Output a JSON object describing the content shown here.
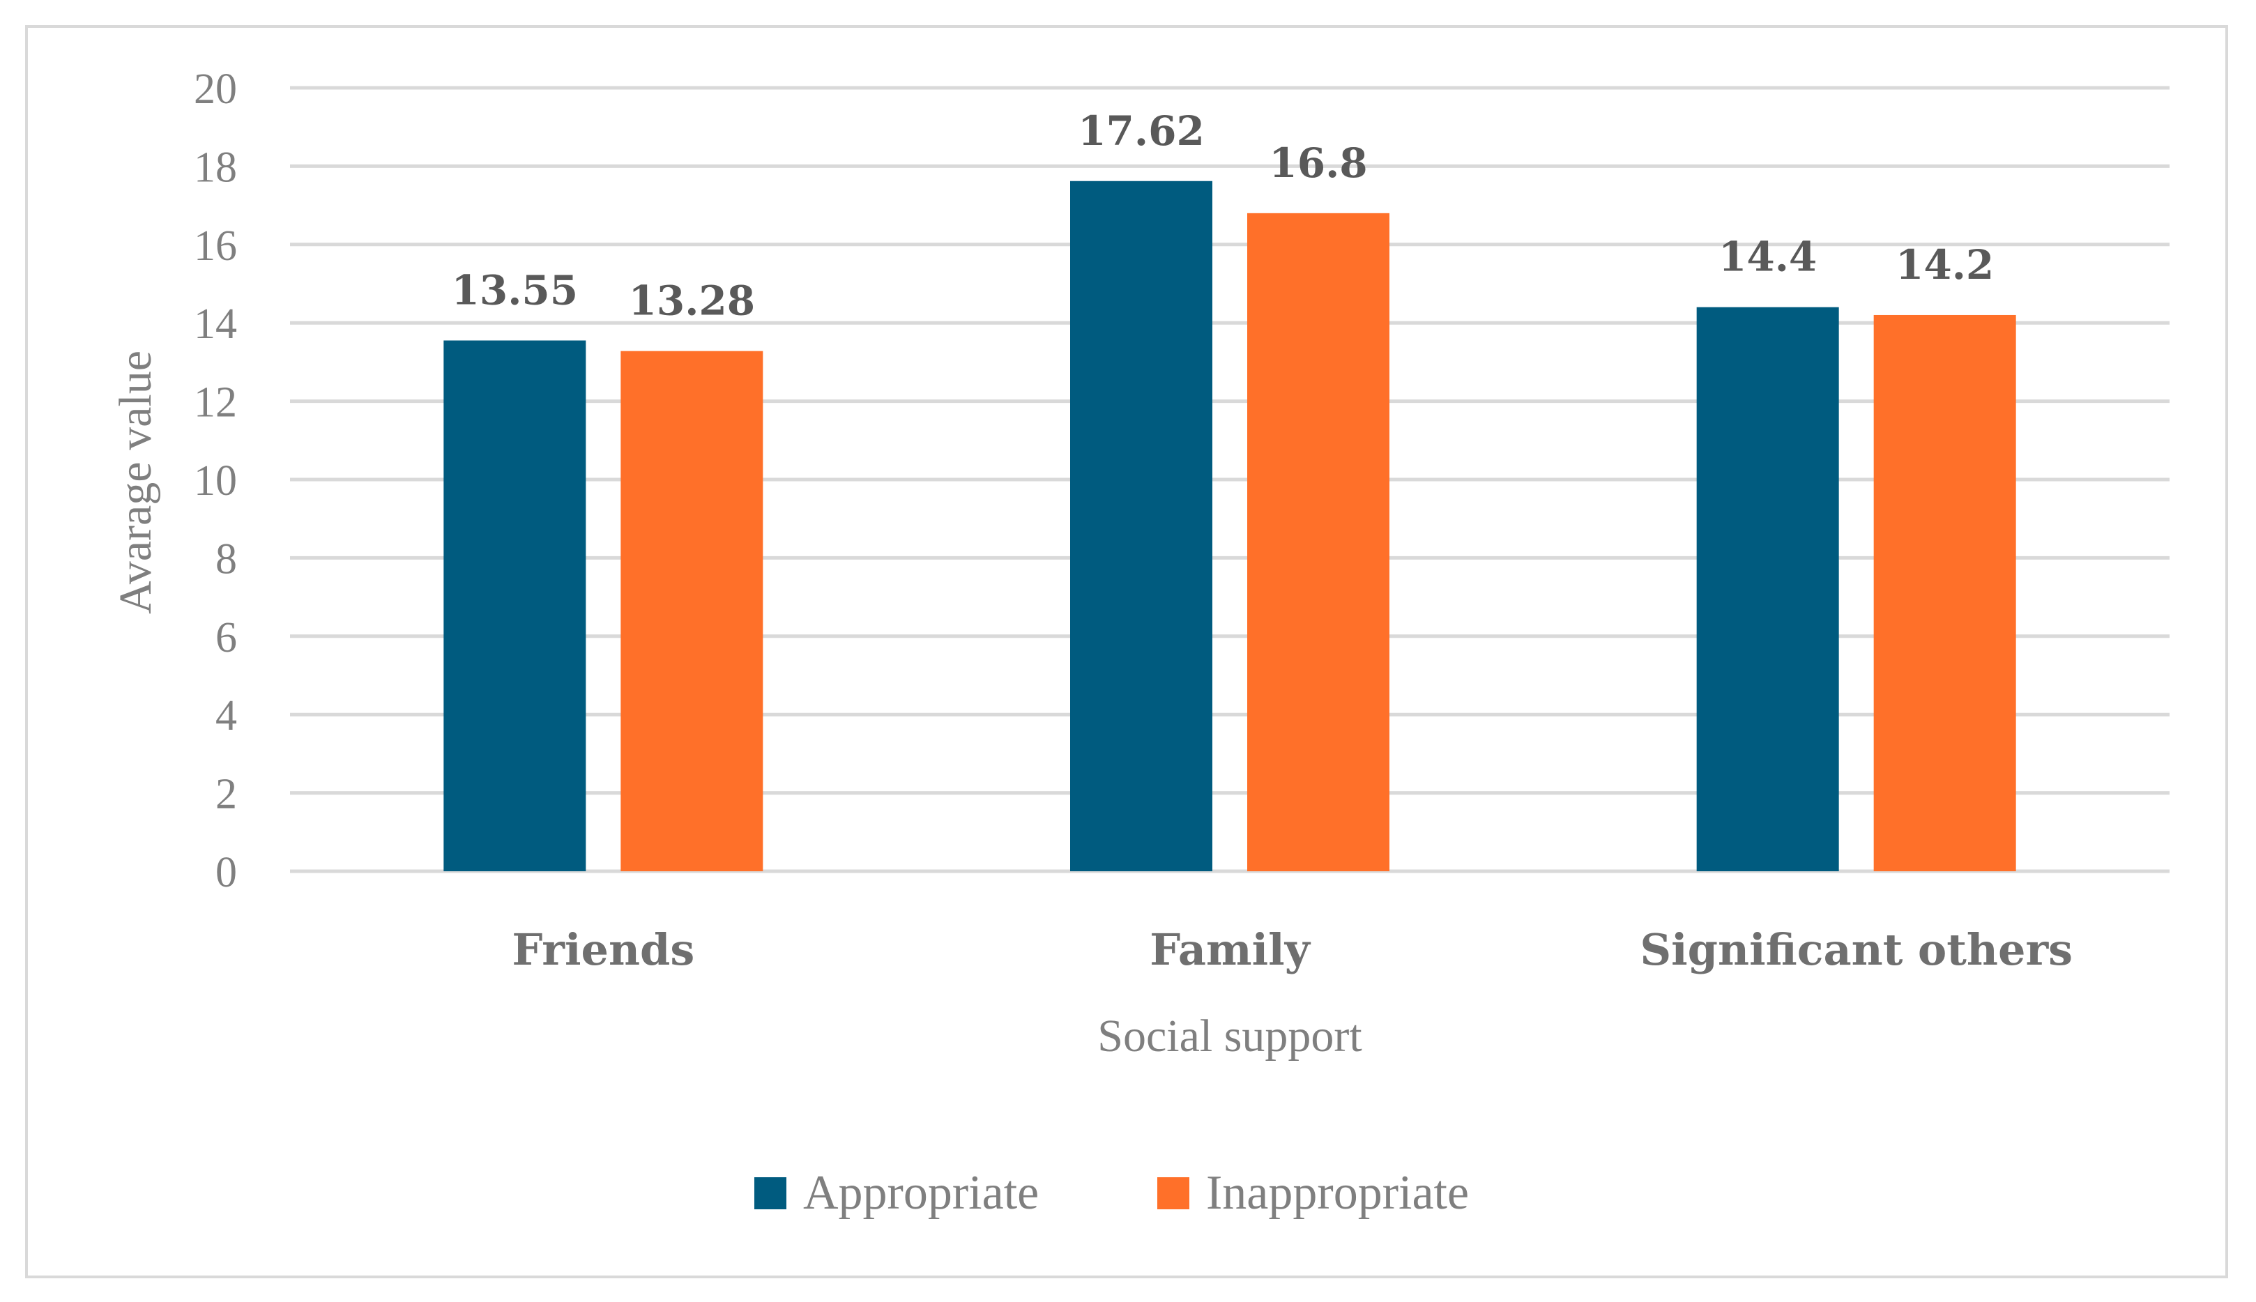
{
  "chart_data": {
    "type": "bar",
    "title": "",
    "xlabel": "Social support",
    "ylabel": "Avarage value",
    "categories": [
      "Friends",
      "Family",
      "Significant others"
    ],
    "series": [
      {
        "name": "Appropriate",
        "values": [
          13.55,
          17.62,
          14.4
        ],
        "labels": [
          "13.55",
          "17.62",
          "14.4"
        ],
        "color": "#005b7f"
      },
      {
        "name": "Inappropriate",
        "values": [
          13.28,
          16.8,
          14.2
        ],
        "labels": [
          "13.28",
          "16.8",
          "14.2"
        ],
        "color": "#ff7029"
      }
    ],
    "ylim": [
      0,
      20
    ],
    "yticks": [
      0,
      2,
      4,
      6,
      8,
      10,
      12,
      14,
      16,
      18,
      20
    ],
    "grid": true,
    "legend_position": "bottom"
  },
  "colors": {
    "gridline": "#d9d9d9",
    "tick_text": "#7f7f7f"
  }
}
